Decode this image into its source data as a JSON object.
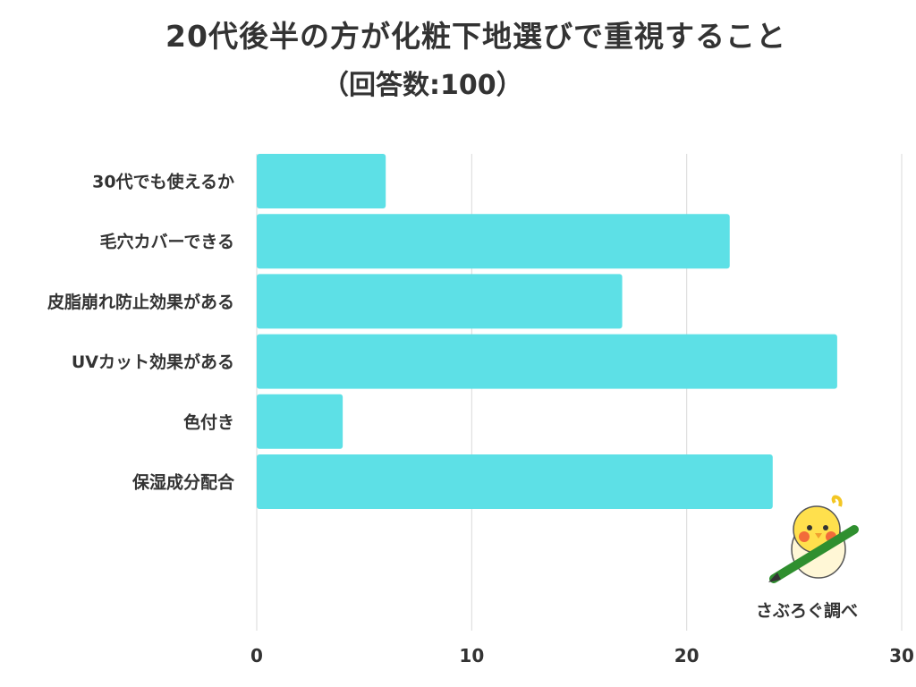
{
  "chart_data": {
    "type": "bar",
    "orientation": "horizontal",
    "title": "20代後半の方が化粧下地選びで重視すること",
    "subtitle": "（回答数:100）",
    "categories": [
      "30代でも使えるか",
      "毛穴カバーできる",
      "皮脂崩れ防止効果がある",
      "UVカット効果がある",
      "色付き",
      "保湿成分配合"
    ],
    "values": [
      6,
      22,
      17,
      27,
      4,
      24
    ],
    "xlim": [
      0,
      30
    ],
    "xticks": [
      "0",
      "10",
      "20",
      "30"
    ],
    "bar_color": "#5de0e6",
    "grid": true
  },
  "credit": "さぶろぐ調べ"
}
